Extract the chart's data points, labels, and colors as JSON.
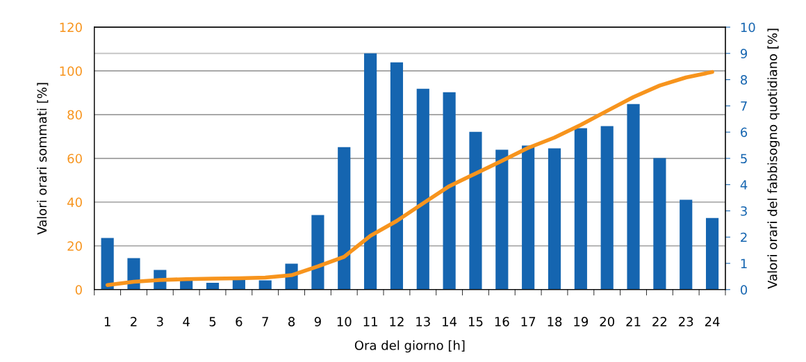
{
  "chart_data": {
    "type": "bar",
    "xlabel": "Ora del giorno [h]",
    "ylabel": "Valori orari sommati [%]",
    "y2label": "Valori orari del fabbisogno quotidiano [%]",
    "categories": [
      "1",
      "2",
      "3",
      "4",
      "5",
      "6",
      "7",
      "8",
      "9",
      "10",
      "11",
      "12",
      "13",
      "14",
      "15",
      "16",
      "17",
      "18",
      "19",
      "20",
      "21",
      "22",
      "23",
      "24"
    ],
    "series": [
      {
        "axis": "y2",
        "color": "#1565b0",
        "values": [
          1.97,
          1.2,
          0.75,
          0.35,
          0.26,
          0.37,
          0.35,
          0.99,
          2.84,
          5.43,
          9.0,
          8.66,
          7.65,
          7.52,
          6.01,
          5.33,
          5.49,
          5.38,
          6.15,
          6.23,
          7.07,
          5.01,
          3.42,
          2.73
        ]
      },
      {
        "type": "line",
        "color": "#f7941d",
        "values": [
          2.1,
          3.6,
          4.4,
          4.8,
          5.0,
          5.2,
          5.5,
          6.6,
          10.6,
          15.0,
          24.6,
          31.4,
          39.4,
          47.3,
          53.1,
          58.9,
          64.8,
          69.5,
          75.3,
          81.7,
          88.0,
          93.3,
          97.0,
          99.5
        ]
      }
    ],
    "ylim": [
      0,
      120
    ],
    "yticks": [
      0,
      20,
      40,
      60,
      80,
      100,
      120
    ],
    "y2lim": [
      0,
      10
    ],
    "y2ticks": [
      0,
      1,
      2,
      3,
      4,
      5,
      6,
      7,
      8,
      9,
      10
    ],
    "ref_lines": [
      {
        "axis": "y2",
        "value": 9,
        "color": "#cccccc"
      }
    ],
    "grid": "y",
    "legend": false,
    "marker": "none",
    "line_style": "solid"
  }
}
